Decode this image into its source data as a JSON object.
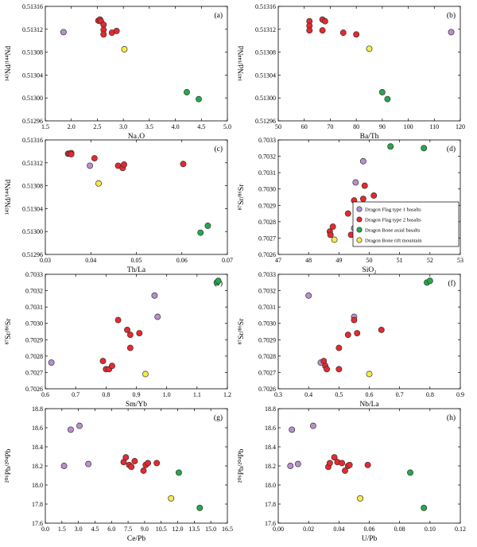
{
  "series_colors": {
    "Dragon Flag type 1 basalts": "#b98fcf",
    "Dragon Flag type 2 basalts": "#e8282e",
    "Dragon Bone axial basalts": "#27a84a",
    "Dragon Bone rift mountain": "#f6ec4a"
  },
  "chart_data": [
    {
      "type": "scatter",
      "panel": "(a)",
      "xlabel": "Na₂O",
      "ylabel": "¹⁴³Nd/¹⁴⁴Nd",
      "xlim": [
        1.5,
        5.0
      ],
      "ylim": [
        0.51296,
        0.51316
      ],
      "xticks": [
        "1.5",
        "2.0",
        "2.5",
        "3.0",
        "3.5",
        "4.0",
        "4.5",
        "5.0"
      ],
      "yticks": [
        "0.51296",
        "0.51300",
        "0.51304",
        "0.51308",
        "0.51312",
        "0.51316"
      ],
      "series": [
        {
          "name": "Dragon Flag type 1 basalts",
          "points": [
            [
              1.85,
              0.513115
            ]
          ]
        },
        {
          "name": "Dragon Flag type 2 basalts",
          "points": [
            [
              2.52,
              0.513135
            ],
            [
              2.55,
              0.513137
            ],
            [
              2.57,
              0.513134
            ],
            [
              2.62,
              0.513128
            ],
            [
              2.62,
              0.513119
            ],
            [
              2.62,
              0.513111
            ],
            [
              2.78,
              0.513114
            ],
            [
              2.87,
              0.513117
            ]
          ]
        },
        {
          "name": "Dragon Bone axial basalts",
          "points": [
            [
              4.22,
              0.51301
            ],
            [
              4.45,
              0.512998
            ]
          ]
        },
        {
          "name": "Dragon Bone rift mountain",
          "points": [
            [
              3.02,
              0.513085
            ]
          ]
        }
      ]
    },
    {
      "type": "scatter",
      "panel": "(b)",
      "xlabel": "Ba/Th",
      "ylabel": "¹⁴³Nd/¹⁴⁴Nd",
      "xlim": [
        50,
        120
      ],
      "ylim": [
        0.51296,
        0.51316
      ],
      "xticks": [
        "50",
        "60",
        "70",
        "80",
        "90",
        "100",
        "110",
        "120"
      ],
      "yticks": [
        "0.51296",
        "0.51300",
        "0.51304",
        "0.51308",
        "0.51312",
        "0.51316"
      ],
      "series": [
        {
          "name": "Dragon Flag type 1 basalts",
          "points": [
            [
              116.5,
              0.513115
            ]
          ]
        },
        {
          "name": "Dragon Flag type 2 basalts",
          "points": [
            [
              62,
              0.513134
            ],
            [
              62,
              0.513126
            ],
            [
              62,
              0.513118
            ],
            [
              67,
              0.513137
            ],
            [
              67,
              0.513118
            ],
            [
              68,
              0.513134
            ],
            [
              75,
              0.513114
            ],
            [
              80,
              0.513111
            ]
          ]
        },
        {
          "name": "Dragon Bone axial basalts",
          "points": [
            [
              90,
              0.51301
            ],
            [
              92,
              0.512998
            ]
          ]
        },
        {
          "name": "Dragon Bone rift mountain",
          "points": [
            [
              85,
              0.513086
            ]
          ]
        }
      ]
    },
    {
      "type": "scatter",
      "panel": "(c)",
      "xlabel": "Th/La",
      "ylabel": "¹⁴³Nd/¹⁴⁴Nd",
      "xlim": [
        0.03,
        0.07
      ],
      "ylim": [
        0.51296,
        0.51316
      ],
      "xticks": [
        "0.03",
        "0.04",
        "0.05",
        "0.06",
        "0.07"
      ],
      "yticks": [
        "0.51296",
        "0.51300",
        "0.51304",
        "0.51308",
        "0.51312",
        "0.51316"
      ],
      "series": [
        {
          "name": "Dragon Flag type 1 basalts",
          "points": [
            [
              0.0398,
              0.513115
            ]
          ]
        },
        {
          "name": "Dragon Flag type 2 basalts",
          "points": [
            [
              0.035,
              0.513136
            ],
            [
              0.0353,
              0.513136
            ],
            [
              0.0357,
              0.513137
            ],
            [
              0.0357,
              0.513135
            ],
            [
              0.0408,
              0.513128
            ],
            [
              0.046,
              0.513115
            ],
            [
              0.047,
              0.513111
            ],
            [
              0.0473,
              0.513117
            ],
            [
              0.0603,
              0.513118
            ]
          ]
        },
        {
          "name": "Dragon Bone axial basalts",
          "points": [
            [
              0.0657,
              0.51301
            ],
            [
              0.0641,
              0.512998
            ]
          ]
        },
        {
          "name": "Dragon Bone rift mountain",
          "points": [
            [
              0.0417,
              0.513084
            ]
          ]
        }
      ]
    },
    {
      "type": "scatter",
      "panel": "(d)",
      "xlabel": "SiO₂",
      "ylabel": "⁸⁷Sr/⁸⁶Sr",
      "xlim": [
        47,
        53
      ],
      "ylim": [
        0.7026,
        0.7033
      ],
      "xticks": [
        "47",
        "48",
        "49",
        "50",
        "51",
        "52",
        "53"
      ],
      "yticks": [
        "0.7026",
        "0.7027",
        "0.7028",
        "0.7029",
        "0.7030",
        "0.7031",
        "0.7032",
        "0.7033"
      ],
      "legend": "right, inside plot",
      "series": [
        {
          "name": "Dragon Flag type 1 basalts",
          "points": [
            [
              49.55,
              0.70304
            ],
            [
              49.5,
              0.70276
            ],
            [
              49.8,
              0.70317
            ]
          ]
        },
        {
          "name": "Dragon Flag type 2 basalts",
          "points": [
            [
              48.7,
              0.70274
            ],
            [
              48.72,
              0.70272
            ],
            [
              48.8,
              0.70277
            ],
            [
              49.3,
              0.70285
            ],
            [
              49.4,
              0.70272
            ],
            [
              49.5,
              0.70293
            ],
            [
              49.8,
              0.70294
            ],
            [
              49.85,
              0.70302
            ],
            [
              50.15,
              0.70296
            ]
          ]
        },
        {
          "name": "Dragon Bone axial basalts",
          "points": [
            [
              50.7,
              0.70326
            ],
            [
              51.8,
              0.70325
            ]
          ]
        },
        {
          "name": "Dragon Bone rift mountain",
          "points": [
            [
              48.85,
              0.70269
            ]
          ]
        }
      ]
    },
    {
      "type": "scatter",
      "panel": "(e)",
      "xlabel": "Sm/Yb",
      "ylabel": "⁸⁷Sr/⁸⁶Sr",
      "xlim": [
        0.6,
        1.2
      ],
      "ylim": [
        0.7026,
        0.7033
      ],
      "xticks": [
        "0.6",
        "0.7",
        "0.8",
        "0.9",
        "1.0",
        "1.1",
        "1.2"
      ],
      "yticks": [
        "0.7026",
        "0.7027",
        "0.7028",
        "0.7029",
        "0.7030",
        "0.7031",
        "0.7032",
        "0.7033"
      ],
      "series": [
        {
          "name": "Dragon Flag type 1 basalts",
          "points": [
            [
              0.62,
              0.70276
            ],
            [
              0.96,
              0.70317
            ],
            [
              0.97,
              0.70304
            ]
          ]
        },
        {
          "name": "Dragon Flag type 2 basalts",
          "points": [
            [
              0.79,
              0.70277
            ],
            [
              0.8,
              0.70272
            ],
            [
              0.81,
              0.70272
            ],
            [
              0.82,
              0.70274
            ],
            [
              0.84,
              0.70302
            ],
            [
              0.87,
              0.70296
            ],
            [
              0.88,
              0.70293
            ],
            [
              0.88,
              0.70285
            ],
            [
              0.91,
              0.70294
            ]
          ]
        },
        {
          "name": "Dragon Bone axial basalts",
          "points": [
            [
              1.165,
              0.70325
            ],
            [
              1.17,
              0.70326
            ]
          ]
        },
        {
          "name": "Dragon Bone rift mountain",
          "points": [
            [
              0.93,
              0.70269
            ]
          ]
        }
      ]
    },
    {
      "type": "scatter",
      "panel": "(f)",
      "xlabel": "Nb/La",
      "ylabel": "⁸⁷Sr/⁸⁶Sr",
      "xlim": [
        0.3,
        0.9
      ],
      "ylim": [
        0.7026,
        0.7033
      ],
      "xticks": [
        "0.3",
        "0.4",
        "0.5",
        "0.6",
        "0.7",
        "0.8",
        "0.9"
      ],
      "yticks": [
        "0.7026",
        "0.7027",
        "0.7028",
        "0.7029",
        "0.7030",
        "0.7031",
        "0.7032",
        "0.7033"
      ],
      "series": [
        {
          "name": "Dragon Flag type 1 basalts",
          "points": [
            [
              0.4,
              0.70317
            ],
            [
              0.44,
              0.70276
            ],
            [
              0.55,
              0.70304
            ]
          ]
        },
        {
          "name": "Dragon Flag type 2 basalts",
          "points": [
            [
              0.45,
              0.70277
            ],
            [
              0.455,
              0.70274
            ],
            [
              0.46,
              0.70272
            ],
            [
              0.5,
              0.70285
            ],
            [
              0.5,
              0.70272
            ],
            [
              0.53,
              0.70293
            ],
            [
              0.55,
              0.70302
            ],
            [
              0.56,
              0.70294
            ],
            [
              0.64,
              0.70296
            ]
          ]
        },
        {
          "name": "Dragon Bone axial basalts",
          "points": [
            [
              0.79,
              0.70325
            ],
            [
              0.8,
              0.70326
            ]
          ]
        },
        {
          "name": "Dragon Bone rift mountain",
          "points": [
            [
              0.6,
              0.70269
            ]
          ]
        }
      ]
    },
    {
      "type": "scatter",
      "panel": "(g)",
      "xlabel": "Ce/Pb",
      "ylabel": "²⁰⁶Pb/²⁰⁴Pb",
      "xlim": [
        0.0,
        16.5
      ],
      "ylim": [
        17.6,
        18.8
      ],
      "xticks": [
        "0.0",
        "1.5",
        "3.0",
        "4.5",
        "6.0",
        "7.5",
        "9.0",
        "10.5",
        "12.0",
        "13.5",
        "15.0",
        "16.5"
      ],
      "yticks": [
        "17.6",
        "17.8",
        "18.0",
        "18.2",
        "18.4",
        "18.6",
        "18.8"
      ],
      "series": [
        {
          "name": "Dragon Flag type 1 basalts",
          "points": [
            [
              1.7,
              18.2
            ],
            [
              2.3,
              18.58
            ],
            [
              3.1,
              18.62
            ],
            [
              3.9,
              18.22
            ]
          ]
        },
        {
          "name": "Dragon Flag type 2 basalts",
          "points": [
            [
              7.1,
              18.24
            ],
            [
              7.3,
              18.29
            ],
            [
              7.6,
              18.21
            ],
            [
              7.8,
              18.19
            ],
            [
              8.1,
              18.25
            ],
            [
              8.9,
              18.15
            ],
            [
              9.1,
              18.21
            ],
            [
              9.3,
              18.23
            ],
            [
              10.1,
              18.23
            ]
          ]
        },
        {
          "name": "Dragon Bone axial basalts",
          "points": [
            [
              12.1,
              18.13
            ],
            [
              14.0,
              17.76
            ]
          ]
        },
        {
          "name": "Dragon Bone rift mountain",
          "points": [
            [
              11.4,
              17.86
            ]
          ]
        }
      ]
    },
    {
      "type": "scatter",
      "panel": "(h)",
      "xlabel": "U/Pb",
      "ylabel": "²⁰⁶Pb/²⁰⁴Pb",
      "xlim": [
        0.0,
        0.12
      ],
      "ylim": [
        17.6,
        18.8
      ],
      "xticks": [
        "0.00",
        "0.02",
        "0.04",
        "0.06",
        "0.08",
        "0.10",
        "0.12"
      ],
      "yticks": [
        "17.6",
        "17.8",
        "18.0",
        "18.2",
        "18.4",
        "18.6",
        "18.8"
      ],
      "series": [
        {
          "name": "Dragon Flag type 1 basalts",
          "points": [
            [
              0.009,
              18.58
            ],
            [
              0.023,
              18.62
            ],
            [
              0.008,
              18.2
            ],
            [
              0.013,
              18.22
            ]
          ]
        },
        {
          "name": "Dragon Flag type 2 basalts",
          "points": [
            [
              0.033,
              18.19
            ],
            [
              0.034,
              18.23
            ],
            [
              0.037,
              18.29
            ],
            [
              0.039,
              18.24
            ],
            [
              0.042,
              18.23
            ],
            [
              0.044,
              18.15
            ],
            [
              0.046,
              18.2
            ],
            [
              0.047,
              18.21
            ],
            [
              0.059,
              18.21
            ]
          ]
        },
        {
          "name": "Dragon Bone axial basalts",
          "points": [
            [
              0.087,
              18.13
            ],
            [
              0.096,
              17.76
            ]
          ]
        },
        {
          "name": "Dragon Bone rift mountain",
          "points": [
            [
              0.054,
              17.86
            ]
          ]
        }
      ]
    }
  ]
}
